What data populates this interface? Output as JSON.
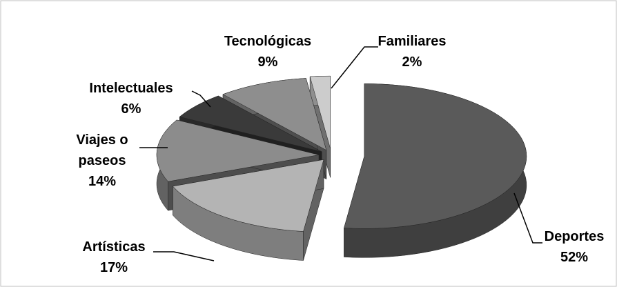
{
  "chart_data": {
    "type": "pie3d",
    "categories": [
      "Deportes",
      "Artísticas",
      "Viajes o paseos",
      "Intelectuales",
      "Tecnológicas",
      "Familiares"
    ],
    "values": [
      52,
      17,
      14,
      6,
      9,
      2
    ],
    "value_labels": [
      "52%",
      "17%",
      "14%",
      "6%",
      "9%",
      "2%"
    ],
    "colors": [
      "#5a5a5a",
      "#b4b4b4",
      "#8c8c8c",
      "#3a3a3a",
      "#8e8e8e",
      "#cccccc"
    ]
  }
}
